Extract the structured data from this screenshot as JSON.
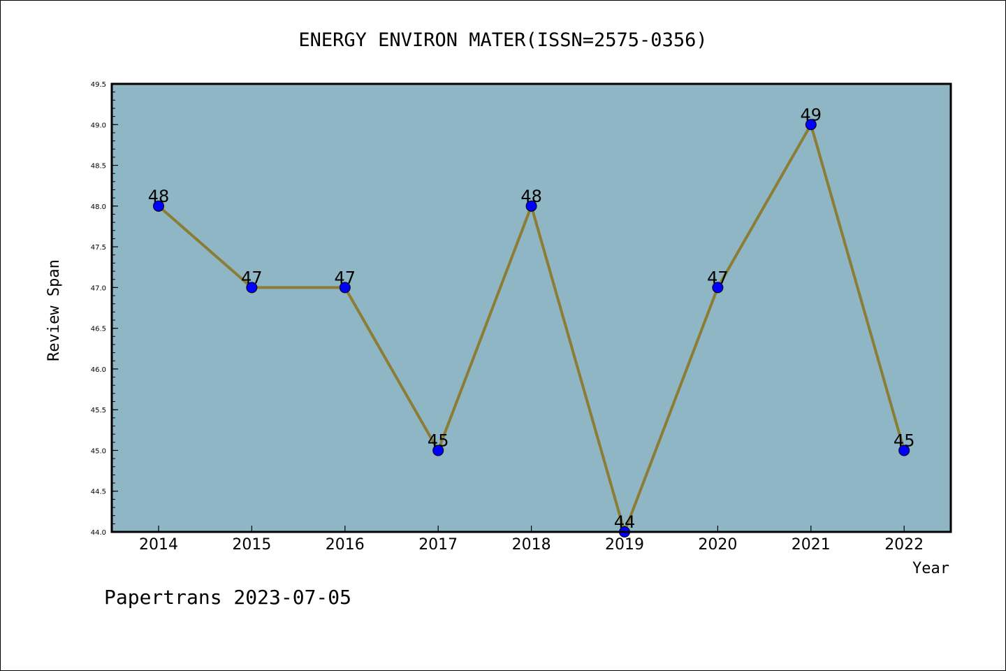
{
  "chart_data": {
    "type": "line",
    "title": "ENERGY ENVIRON MATER(ISSN=2575-0356)",
    "xlabel": "Year",
    "ylabel": "Review Span",
    "categories": [
      "2014",
      "2015",
      "2016",
      "2017",
      "2018",
      "2019",
      "2020",
      "2021",
      "2022"
    ],
    "values": [
      48,
      47,
      47,
      45,
      48,
      44,
      47,
      49,
      45
    ],
    "data_labels": [
      "48",
      "47",
      "47",
      "45",
      "48",
      "44",
      "47",
      "49",
      "45"
    ],
    "ylim": [
      44.0,
      49.5
    ],
    "yticks": [
      "44.0",
      "44.5",
      "45.0",
      "45.5",
      "46.0",
      "46.5",
      "47.0",
      "47.5",
      "48.0",
      "48.5",
      "49.0",
      "49.5"
    ],
    "grid": false,
    "colors": {
      "plot_background": "#8fb6c4",
      "line": "#8b7d35",
      "marker": "#0000ff"
    }
  },
  "footer": "Papertrans 2023-07-05"
}
